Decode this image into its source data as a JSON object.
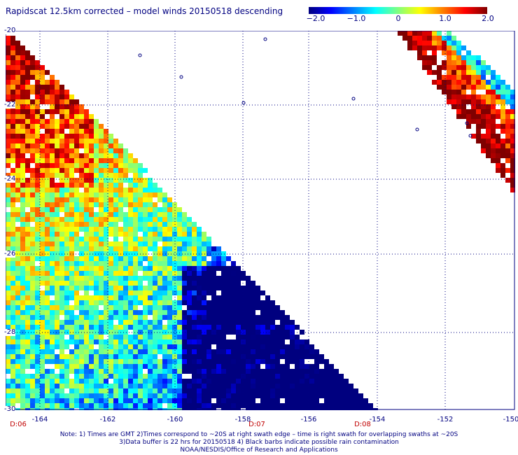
{
  "title": "Rapidscat 12.5km corrected – model winds 20150518 descending",
  "colorbar": {
    "labels": [
      "−2.0",
      "−1.0",
      "0",
      "1.0",
      "2.0"
    ],
    "range": [
      -2.0,
      2.0
    ],
    "colors": [
      "#00007f",
      "#0000ff",
      "#0080ff",
      "#00ffff",
      "#80ff80",
      "#ffff00",
      "#ff8000",
      "#ff0000",
      "#7f0000"
    ]
  },
  "map": {
    "lat_labels": [
      "-20",
      "-22",
      "-24",
      "-26",
      "-28",
      "-30"
    ],
    "lon_labels": [
      "-164",
      "-162",
      "-160",
      "-158",
      "-156",
      "-154",
      "-152",
      "-150"
    ],
    "lat_range": [
      -30,
      -20
    ],
    "lon_range": [
      -165,
      -150
    ],
    "grid": true,
    "swath_times": [
      "D:06",
      "D:07",
      "D:08"
    ]
  },
  "notes": [
    "Note: 1) Times are GMT 2)Times correspond to ~20S at right swath edge – time is right swath for overlapping swaths at ~20S",
    "3)Data buffer is 22 hrs for 20150518 4) Black barbs indicate possible rain contamination",
    "NOAA/NESDIS/Office of Research and Applications"
  ]
}
